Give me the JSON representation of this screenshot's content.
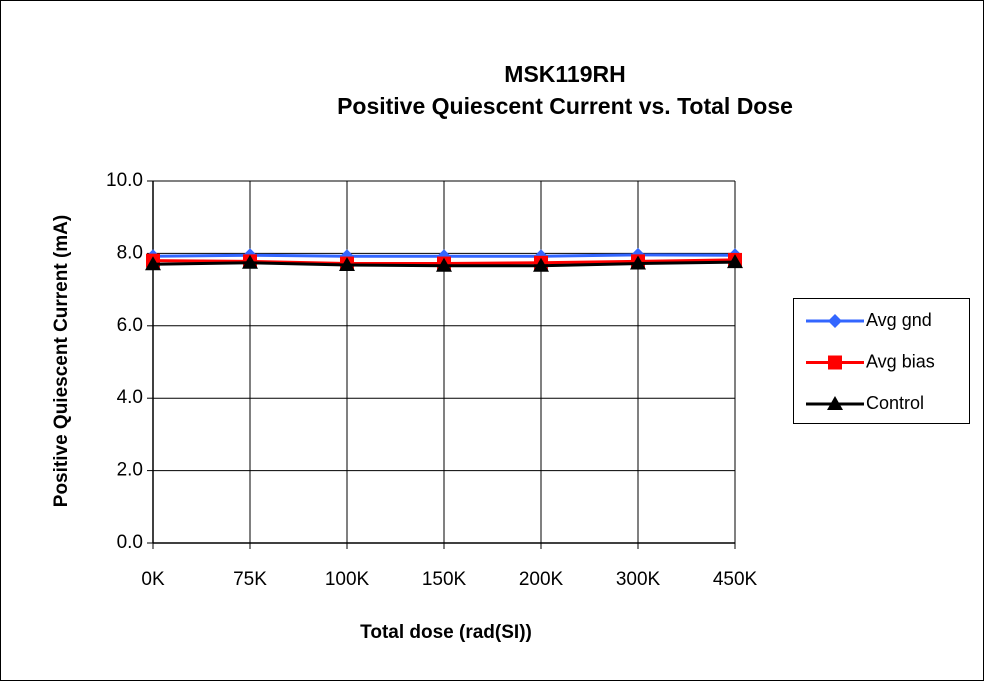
{
  "chart_data": {
    "type": "line",
    "title": "MSK119RH",
    "subtitle": "Positive Quiescent Current vs. Total Dose",
    "x_label": "Total dose (rad(SI))",
    "y_label": "Positive Quiescent Current (mA)",
    "categories": [
      "0K",
      "75K",
      "100K",
      "150K",
      "200K",
      "300K",
      "450K"
    ],
    "series": [
      {
        "name": "Avg gnd",
        "color": "#3366ff",
        "marker": "diamond",
        "values": [
          7.92,
          7.95,
          7.92,
          7.92,
          7.92,
          7.96,
          7.95
        ]
      },
      {
        "name": "Avg bias",
        "color": "#ff0000",
        "marker": "square",
        "values": [
          7.8,
          7.78,
          7.72,
          7.72,
          7.74,
          7.78,
          7.82
        ]
      },
      {
        "name": "Control",
        "color": "#000000",
        "marker": "triangle",
        "values": [
          7.7,
          7.74,
          7.68,
          7.66,
          7.66,
          7.72,
          7.76
        ]
      }
    ],
    "ylim": [
      0,
      10
    ],
    "yticks": [
      {
        "value": 0,
        "label": "0.0"
      },
      {
        "value": 2,
        "label": "2.0"
      },
      {
        "value": 4,
        "label": "4.0"
      },
      {
        "value": 6,
        "label": "6.0"
      },
      {
        "value": 8,
        "label": "8.0"
      },
      {
        "value": 10,
        "label": "10.0"
      }
    ],
    "grid": true,
    "legend": "right"
  }
}
